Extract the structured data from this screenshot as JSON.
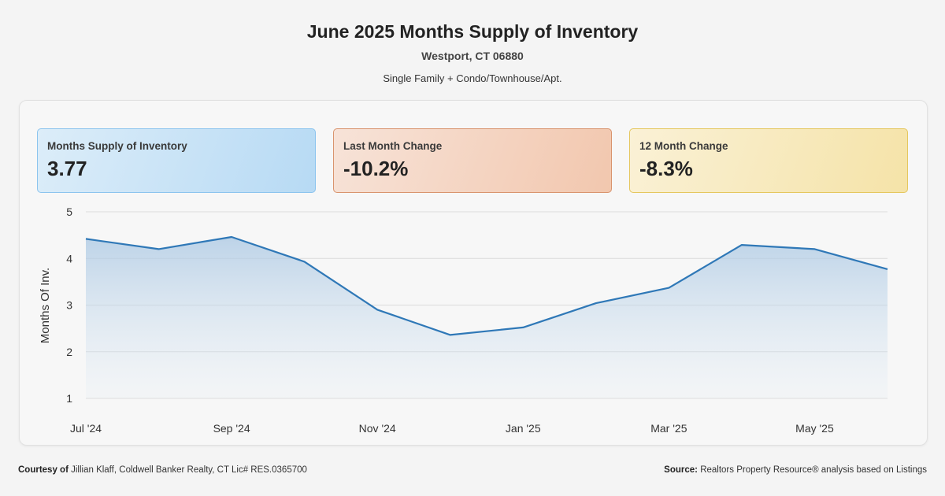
{
  "header": {
    "title": "June 2025 Months Supply of Inventory",
    "location": "Westport, CT 06880",
    "property_types": "Single Family + Condo/Townhouse/Apt."
  },
  "cards": [
    {
      "label": "Months Supply of Inventory",
      "value": "3.77",
      "accent": "#8cc4ee"
    },
    {
      "label": "Last Month Change",
      "value": "-10.2%",
      "accent": "#d9946e"
    },
    {
      "label": "12 Month Change",
      "value": "-8.3%",
      "accent": "#e5c75e"
    }
  ],
  "chart_data": {
    "type": "area",
    "ylabel": "Months Of Inv.",
    "ylim": [
      1,
      5
    ],
    "yticks": [
      1,
      2,
      3,
      4,
      5
    ],
    "x": [
      "Jul '24",
      "Aug '24",
      "Sep '24",
      "Oct '24",
      "Nov '24",
      "Dec '24",
      "Jan '25",
      "Feb '25",
      "Mar '25",
      "Apr '25",
      "May '25",
      "Jun '25"
    ],
    "x_tick_labels": [
      "Jul '24",
      "",
      "Sep '24",
      "",
      "Nov '24",
      "",
      "Jan '25",
      "",
      "Mar '25",
      "",
      "May '25",
      ""
    ],
    "series": [
      {
        "values": [
          4.42,
          4.2,
          4.46,
          3.93,
          2.9,
          2.36,
          2.52,
          3.04,
          3.37,
          4.29,
          4.2,
          3.77
        ],
        "color": "#2f78b7"
      }
    ],
    "grid": true
  },
  "footer": {
    "courtesy_label": "Courtesy of",
    "courtesy_text": "Jillian Klaff, Coldwell Banker Realty, CT Lic# RES.0365700",
    "source_label": "Source:",
    "source_text": "Realtors Property Resource® analysis based on Listings"
  }
}
